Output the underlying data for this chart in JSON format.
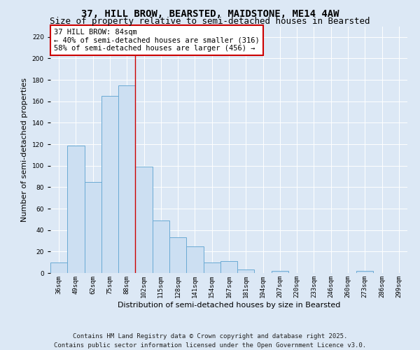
{
  "title_line1": "37, HILL BROW, BEARSTED, MAIDSTONE, ME14 4AW",
  "title_line2": "Size of property relative to semi-detached houses in Bearsted",
  "xlabel": "Distribution of semi-detached houses by size in Bearsted",
  "ylabel": "Number of semi-detached properties",
  "categories": [
    "36sqm",
    "49sqm",
    "62sqm",
    "75sqm",
    "88sqm",
    "102sqm",
    "115sqm",
    "128sqm",
    "141sqm",
    "154sqm",
    "167sqm",
    "181sqm",
    "194sqm",
    "207sqm",
    "220sqm",
    "233sqm",
    "246sqm",
    "260sqm",
    "273sqm",
    "286sqm",
    "299sqm"
  ],
  "values": [
    10,
    119,
    85,
    165,
    175,
    99,
    49,
    33,
    25,
    10,
    11,
    3,
    0,
    2,
    0,
    0,
    0,
    0,
    2,
    0,
    0
  ],
  "bar_color": "#ccdff2",
  "bar_edge_color": "#6aaad4",
  "background_color": "#dce8f5",
  "vline_index": 4,
  "vline_color": "#cc0000",
  "annotation_text": "37 HILL BROW: 84sqm\n← 40% of semi-detached houses are smaller (316)\n58% of semi-detached houses are larger (456) →",
  "annotation_box_color": "white",
  "annotation_box_edge_color": "#cc0000",
  "ylim": [
    0,
    230
  ],
  "yticks": [
    0,
    20,
    40,
    60,
    80,
    100,
    120,
    140,
    160,
    180,
    200,
    220
  ],
  "footnote_line1": "Contains HM Land Registry data © Crown copyright and database right 2025.",
  "footnote_line2": "Contains public sector information licensed under the Open Government Licence v3.0.",
  "title_fontsize": 10,
  "subtitle_fontsize": 9,
  "tick_fontsize": 6.5,
  "ylabel_fontsize": 8,
  "xlabel_fontsize": 8,
  "annotation_fontsize": 7.5,
  "footnote_fontsize": 6.5,
  "grid_color": "#ffffff"
}
